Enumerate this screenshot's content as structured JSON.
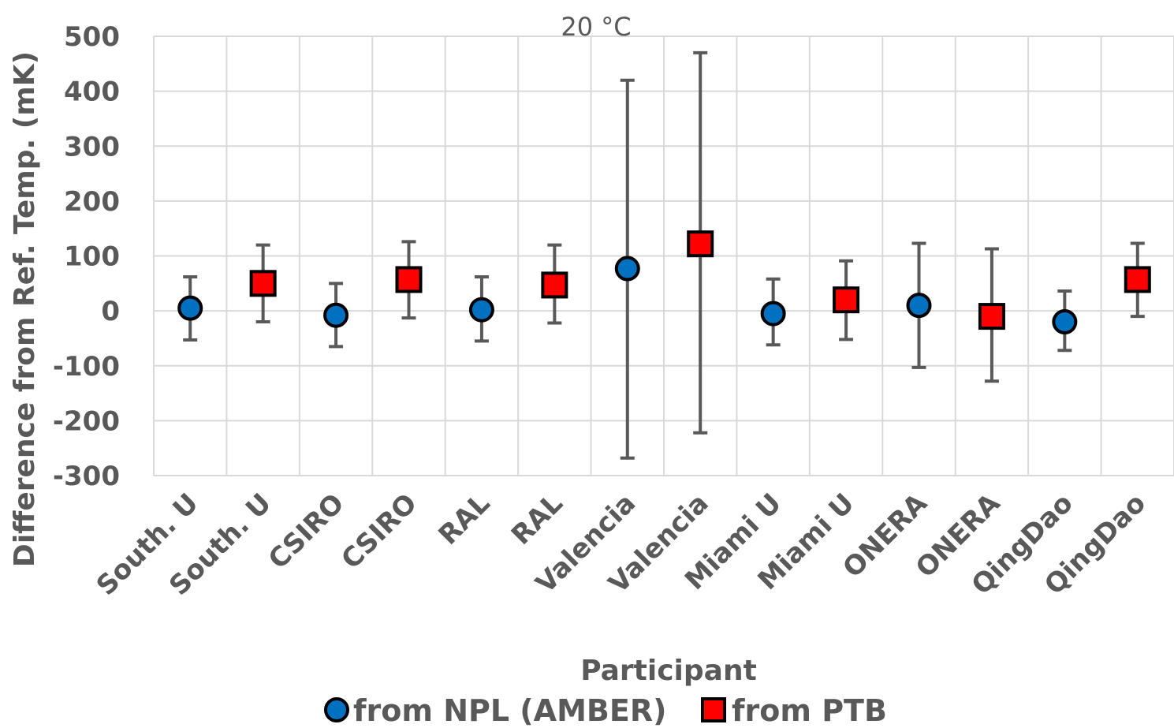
{
  "chart_data": {
    "type": "scatter",
    "title": "20 °C",
    "xlabel": "Participant",
    "ylabel": "Difference from Ref. Temp. (mK)",
    "ylim": [
      -300,
      500
    ],
    "yticks": [
      500,
      400,
      300,
      200,
      100,
      0,
      -100,
      -200,
      -300
    ],
    "grid": true,
    "legend_position": "bottom",
    "categories": [
      "South. U",
      "South. U",
      "CSIRO",
      "CSIRO",
      "RAL",
      "RAL",
      "Valencia",
      "Valencia",
      "Miami U",
      "Miami U",
      "ONERA",
      "ONERA",
      "QingDao",
      "QingDao"
    ],
    "series": [
      {
        "name": "from NPL (AMBER)",
        "marker": "circle",
        "color": "#0070C0",
        "points": [
          {
            "category_index": 0,
            "y": 5,
            "err_low": -53,
            "err_high": 62
          },
          {
            "category_index": 2,
            "y": -8,
            "err_low": -65,
            "err_high": 50
          },
          {
            "category_index": 4,
            "y": 2,
            "err_low": -55,
            "err_high": 62
          },
          {
            "category_index": 6,
            "y": 77,
            "err_low": -268,
            "err_high": 420
          },
          {
            "category_index": 8,
            "y": -5,
            "err_low": -62,
            "err_high": 58
          },
          {
            "category_index": 10,
            "y": 10,
            "err_low": -103,
            "err_high": 123
          },
          {
            "category_index": 12,
            "y": -20,
            "err_low": -72,
            "err_high": 36
          }
        ]
      },
      {
        "name": "from PTB",
        "marker": "square",
        "color": "#FF0000",
        "points": [
          {
            "category_index": 1,
            "y": 50,
            "err_low": -20,
            "err_high": 120
          },
          {
            "category_index": 3,
            "y": 57,
            "err_low": -13,
            "err_high": 126
          },
          {
            "category_index": 5,
            "y": 47,
            "err_low": -22,
            "err_high": 120
          },
          {
            "category_index": 7,
            "y": 122,
            "err_low": -222,
            "err_high": 470
          },
          {
            "category_index": 9,
            "y": 20,
            "err_low": -52,
            "err_high": 91
          },
          {
            "category_index": 11,
            "y": -10,
            "err_low": -128,
            "err_high": 113
          },
          {
            "category_index": 13,
            "y": 57,
            "err_low": -10,
            "err_high": 123
          }
        ]
      }
    ]
  }
}
